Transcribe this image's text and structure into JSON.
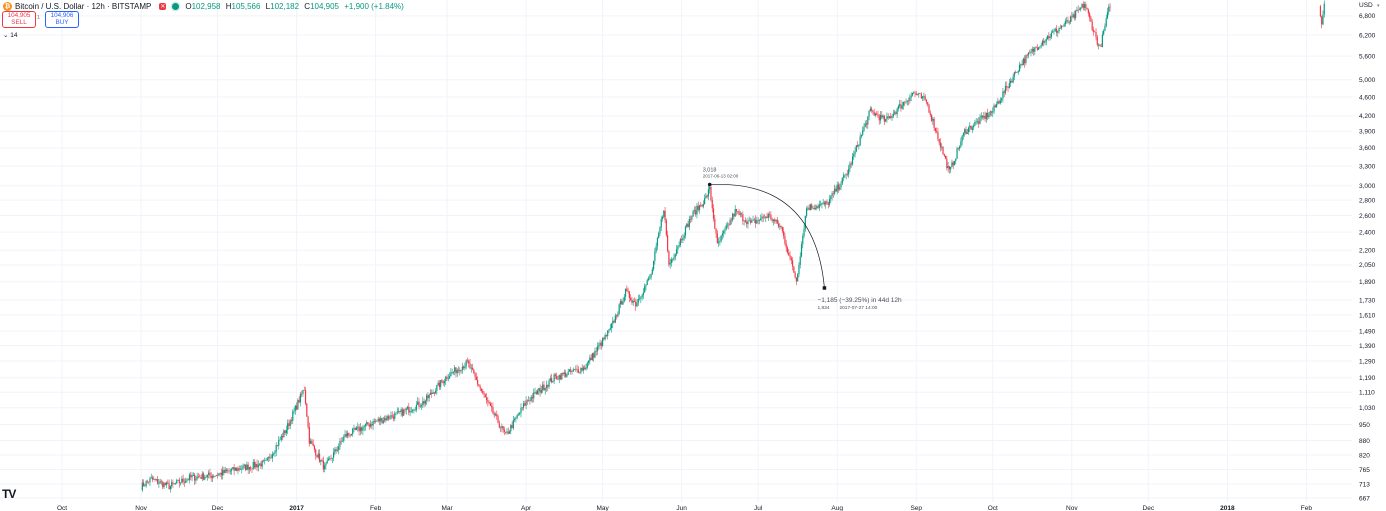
{
  "header": {
    "title": "Bitcoin / U.S. Dollar · 12h · BITSTAMP",
    "ohlc": [
      {
        "key": "O",
        "value": "102,958"
      },
      {
        "key": "H",
        "value": "105,566"
      },
      {
        "key": "L",
        "value": "102,182"
      },
      {
        "key": "C",
        "value": "104,905"
      },
      {
        "key": "",
        "value": "+1,900 (+1.84%)"
      }
    ],
    "sell": {
      "price": "104,905",
      "label": "SELL"
    },
    "buy": {
      "price": "104,906",
      "label": "BUY"
    },
    "spread": "1",
    "indicator": "14",
    "currency": "USD"
  },
  "colors": {
    "up": "#089981",
    "down": "#f23645",
    "grid": "#f0f3fa"
  },
  "icons": [
    "bitcoin-logo-icon",
    "market-closed-icon",
    "live-status-icon",
    "chevron-down-icon",
    "tradingview-logo-icon"
  ],
  "chart_data": {
    "type": "candlestick",
    "scale": "log",
    "ylim": [
      667,
      7200
    ],
    "y_ticks": [
      "6,800",
      "6,200",
      "5,600",
      "5,000",
      "4,600",
      "4,200",
      "3,900",
      "3,600",
      "3,300",
      "3,000",
      "2,800",
      "2,600",
      "2,400",
      "2,200",
      "2,050",
      "1,890",
      "1,730",
      "1,610",
      "1,490",
      "1,390",
      "1,290",
      "1,190",
      "1,110",
      "1,030",
      "950",
      "880",
      "820",
      "765",
      "713",
      "667"
    ],
    "x_ticks": [
      {
        "label": "Oct",
        "date": "2016-10-01",
        "bold": false
      },
      {
        "label": "Nov",
        "date": "2016-11-01",
        "bold": false
      },
      {
        "label": "Dec",
        "date": "2016-12-01",
        "bold": false
      },
      {
        "label": "2017",
        "date": "2017-01-01",
        "bold": true
      },
      {
        "label": "Feb",
        "date": "2017-02-01",
        "bold": false
      },
      {
        "label": "Mar",
        "date": "2017-03-01",
        "bold": false
      },
      {
        "label": "Apr",
        "date": "2017-04-01",
        "bold": false
      },
      {
        "label": "May",
        "date": "2017-05-01",
        "bold": false
      },
      {
        "label": "Jun",
        "date": "2017-06-01",
        "bold": false
      },
      {
        "label": "Jul",
        "date": "2017-07-01",
        "bold": false
      },
      {
        "label": "Aug",
        "date": "2017-08-01",
        "bold": false
      },
      {
        "label": "Sep",
        "date": "2017-09-01",
        "bold": false
      },
      {
        "label": "Oct",
        "date": "2017-10-01",
        "bold": false
      },
      {
        "label": "Nov",
        "date": "2017-11-01",
        "bold": false
      },
      {
        "label": "Dec",
        "date": "2017-12-01",
        "bold": false
      },
      {
        "label": "2018",
        "date": "2018-01-01",
        "bold": true
      },
      {
        "label": "Feb",
        "date": "2018-02-01",
        "bold": false
      }
    ],
    "price_path": [
      [
        "2016-11-01",
        705
      ],
      [
        "2016-11-05",
        730
      ],
      [
        "2016-11-12",
        705
      ],
      [
        "2016-11-20",
        735
      ],
      [
        "2016-11-30",
        745
      ],
      [
        "2016-12-10",
        770
      ],
      [
        "2016-12-20",
        790
      ],
      [
        "2016-12-28",
        930
      ],
      [
        "2017-01-04",
        1130
      ],
      [
        "2017-01-06",
        880
      ],
      [
        "2017-01-12",
        770
      ],
      [
        "2017-01-20",
        900
      ],
      [
        "2017-01-31",
        960
      ],
      [
        "2017-02-10",
        1000
      ],
      [
        "2017-02-20",
        1060
      ],
      [
        "2017-03-01",
        1200
      ],
      [
        "2017-03-09",
        1280
      ],
      [
        "2017-03-17",
        1050
      ],
      [
        "2017-03-24",
        900
      ],
      [
        "2017-04-01",
        1060
      ],
      [
        "2017-04-12",
        1190
      ],
      [
        "2017-04-24",
        1250
      ],
      [
        "2017-05-04",
        1500
      ],
      [
        "2017-05-10",
        1800
      ],
      [
        "2017-05-14",
        1700
      ],
      [
        "2017-05-20",
        1950
      ],
      [
        "2017-05-25",
        2700
      ],
      [
        "2017-05-27",
        2050
      ],
      [
        "2017-06-05",
        2600
      ],
      [
        "2017-06-10",
        2800
      ],
      [
        "2017-06-12",
        2950
      ],
      [
        "2017-06-15",
        2250
      ],
      [
        "2017-06-22",
        2650
      ],
      [
        "2017-06-28",
        2500
      ],
      [
        "2017-07-05",
        2600
      ],
      [
        "2017-07-10",
        2450
      ],
      [
        "2017-07-16",
        1900
      ],
      [
        "2017-07-20",
        2700
      ],
      [
        "2017-07-28",
        2750
      ],
      [
        "2017-08-05",
        3200
      ],
      [
        "2017-08-14",
        4300
      ],
      [
        "2017-08-20",
        4100
      ],
      [
        "2017-08-31",
        4700
      ],
      [
        "2017-09-05",
        4500
      ],
      [
        "2017-09-14",
        3200
      ],
      [
        "2017-09-20",
        3900
      ],
      [
        "2017-10-01",
        4300
      ],
      [
        "2017-10-12",
        5400
      ],
      [
        "2017-10-20",
        6000
      ],
      [
        "2017-11-01",
        6700
      ],
      [
        "2017-11-06",
        7200
      ],
      [
        "2017-11-12",
        5800
      ],
      [
        "2017-11-16",
        7200
      ]
    ],
    "price_path_2": [
      [
        "2018-02-06",
        7200
      ],
      [
        "2018-02-07",
        6500
      ],
      [
        "2018-02-08",
        7200
      ]
    ],
    "annotation": {
      "start": {
        "date": "2017-06-12",
        "price": 3018,
        "value_label": "3,018",
        "time_label": "2017-06-13 02:00"
      },
      "end": {
        "date": "2017-07-27",
        "price": 1834,
        "value_label": "1,834",
        "time_label": "2017-07-27  14:00"
      },
      "change_label": "−1,185 (−39.25%) in 44d 12h"
    }
  }
}
